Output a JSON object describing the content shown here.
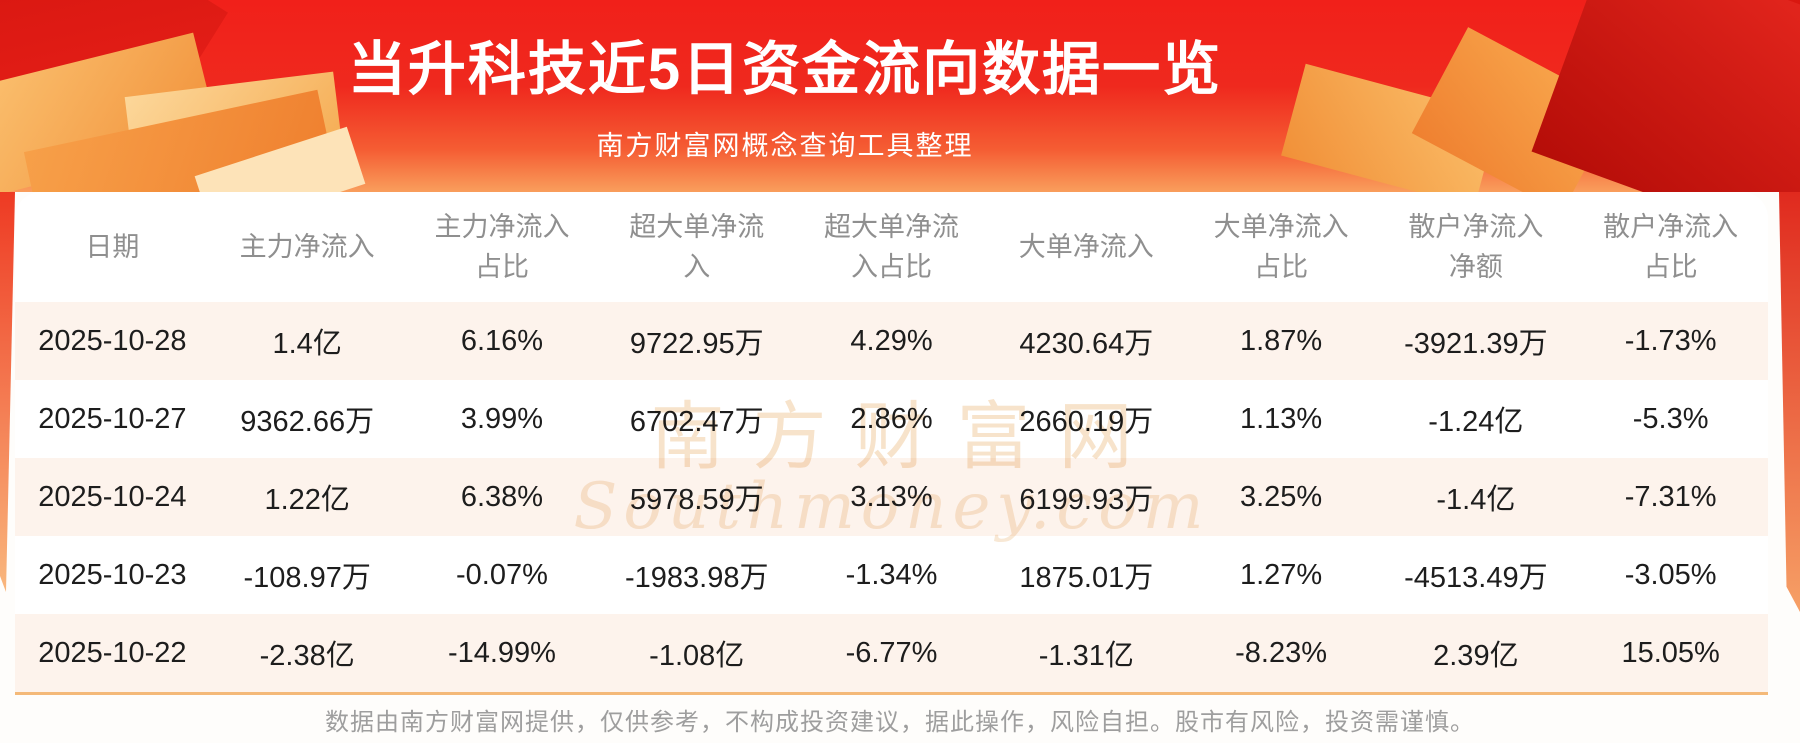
{
  "banner": {
    "title": "当升科技近5日资金流向数据一览",
    "subtitle": "南方财富网概念查询工具整理"
  },
  "watermark": {
    "cn": "南方财富网",
    "en": "Southmoney.com"
  },
  "footer": {
    "disclaimer": "数据由南方财富网提供，仅供参考，不构成投资建议，据此操作，风险自担。股市有风险，投资需谨慎。"
  },
  "colors": {
    "banner_red_top": "#f1201a",
    "banner_orange_bottom": "#f99e5c",
    "row_stripe": "#fdf3ec",
    "header_text": "#8f8f8f",
    "data_text": "#1d1d1d",
    "divider_orange": "#f4b978",
    "footer_text": "#9e9e9e",
    "watermark": "#f7e3cb"
  },
  "chart_data": {
    "type": "table",
    "title": "当升科技近5日资金流向数据一览",
    "columns": [
      "日期",
      "主力净流入",
      "主力净流入\n占比",
      "超大单净流\n入",
      "超大单净流\n入占比",
      "大单净流入",
      "大单净流入\n占比",
      "散户净流入\n净额",
      "散户净流入\n占比"
    ],
    "rows": [
      [
        "2025-10-28",
        "1.4亿",
        "6.16%",
        "9722.95万",
        "4.29%",
        "4230.64万",
        "1.87%",
        "-3921.39万",
        "-1.73%"
      ],
      [
        "2025-10-27",
        "9362.66万",
        "3.99%",
        "6702.47万",
        "2.86%",
        "2660.19万",
        "1.13%",
        "-1.24亿",
        "-5.3%"
      ],
      [
        "2025-10-24",
        "1.22亿",
        "6.38%",
        "5978.59万",
        "3.13%",
        "6199.93万",
        "3.25%",
        "-1.4亿",
        "-7.31%"
      ],
      [
        "2025-10-23",
        "-108.97万",
        "-0.07%",
        "-1983.98万",
        "-1.34%",
        "1875.01万",
        "1.27%",
        "-4513.49万",
        "-3.05%"
      ],
      [
        "2025-10-22",
        "-2.38亿",
        "-14.99%",
        "-1.08亿",
        "-6.77%",
        "-1.31亿",
        "-8.23%",
        "2.39亿",
        "15.05%"
      ]
    ]
  }
}
